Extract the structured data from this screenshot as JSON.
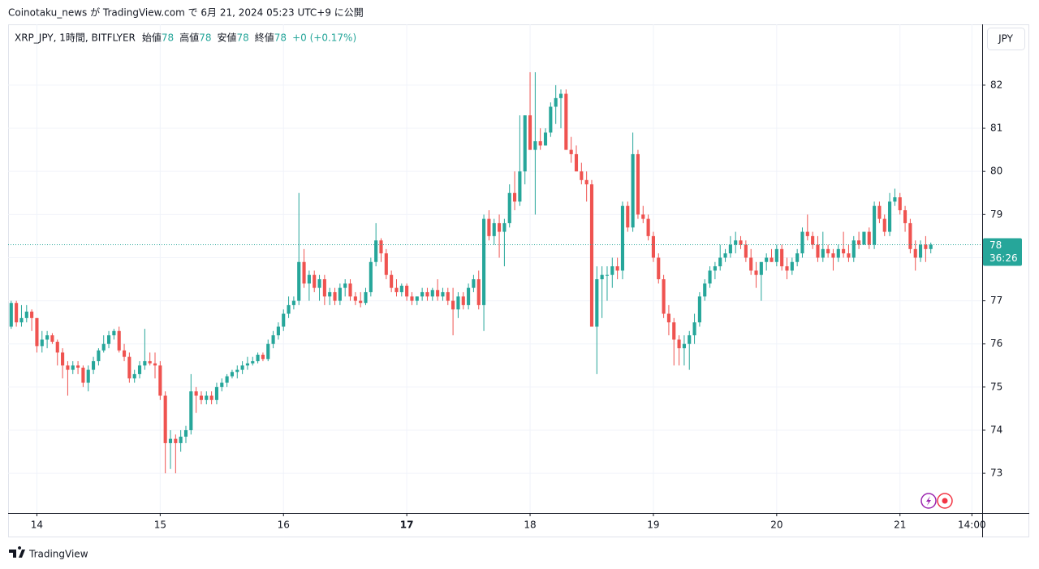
{
  "chart_data": {
    "type": "candlestick",
    "header": "Coinotaku_news が TradingView.com で 6月 21, 2024 05:23 UTC+9 に公開",
    "symbol": "XRP_JPY, 1時間, BITFLYER",
    "ohlc": [
      {
        "label": "始値",
        "value": "78"
      },
      {
        "label": "高値",
        "value": "78"
      },
      {
        "label": "安値",
        "value": "78"
      },
      {
        "label": "終値",
        "value": "78"
      }
    ],
    "change": "+0 (+0.17%)",
    "currency": "JPY",
    "last_price": {
      "label": "78",
      "countdown": "36:26"
    },
    "brand": "TradingView",
    "up_color": "#26a69a",
    "down_color": "#ef5350",
    "grid": true,
    "ylim": [
      72.08,
      83.41
    ],
    "yticks": [
      73,
      74,
      75,
      76,
      77,
      78,
      79,
      80,
      81,
      82
    ],
    "xlim": [
      -0.6,
      189
    ],
    "xticks": [
      {
        "value": 5,
        "label": "14"
      },
      {
        "value": 29,
        "label": "15"
      },
      {
        "value": 53,
        "label": "16"
      },
      {
        "value": 77,
        "label": "17",
        "bold": true
      },
      {
        "value": 101,
        "label": "18"
      },
      {
        "value": 125,
        "label": "19"
      },
      {
        "value": 149,
        "label": "20"
      },
      {
        "value": 173,
        "label": "21"
      },
      {
        "value": 187,
        "label": "14:00"
      }
    ],
    "candles": [
      [
        76.4,
        77.0,
        76.35,
        76.95
      ],
      [
        76.95,
        77.0,
        76.4,
        76.5
      ],
      [
        76.5,
        76.9,
        76.4,
        76.6
      ],
      [
        76.6,
        76.9,
        76.5,
        76.75
      ],
      [
        76.75,
        76.8,
        76.3,
        76.6
      ],
      [
        76.6,
        76.6,
        75.8,
        75.95
      ],
      [
        75.95,
        76.3,
        75.8,
        76.1
      ],
      [
        76.1,
        76.3,
        75.9,
        76.2
      ],
      [
        76.2,
        76.25,
        76.0,
        76.05
      ],
      [
        76.05,
        76.1,
        75.5,
        75.8
      ],
      [
        75.8,
        75.9,
        75.2,
        75.5
      ],
      [
        75.5,
        75.6,
        74.8,
        75.4
      ],
      [
        75.4,
        75.6,
        75.3,
        75.5
      ],
      [
        75.5,
        75.6,
        75.3,
        75.45
      ],
      [
        75.45,
        75.5,
        75.0,
        75.1
      ],
      [
        75.1,
        75.5,
        74.9,
        75.4
      ],
      [
        75.4,
        75.7,
        75.3,
        75.6
      ],
      [
        75.6,
        75.9,
        75.5,
        75.85
      ],
      [
        75.85,
        76.2,
        75.8,
        76.0
      ],
      [
        76.0,
        76.3,
        75.9,
        76.2
      ],
      [
        76.2,
        76.35,
        76.1,
        76.3
      ],
      [
        76.3,
        76.4,
        75.8,
        75.85
      ],
      [
        75.85,
        76.0,
        75.6,
        75.7
      ],
      [
        75.7,
        75.8,
        75.1,
        75.2
      ],
      [
        75.2,
        75.4,
        75.1,
        75.3
      ],
      [
        75.3,
        75.6,
        75.2,
        75.5
      ],
      [
        75.5,
        76.35,
        75.4,
        75.6
      ],
      [
        75.6,
        75.8,
        75.5,
        75.55
      ],
      [
        75.55,
        75.8,
        75.2,
        75.5
      ],
      [
        75.5,
        75.6,
        74.7,
        74.8
      ],
      [
        74.8,
        74.9,
        73.0,
        73.7
      ],
      [
        73.7,
        74.0,
        73.1,
        73.8
      ],
      [
        73.8,
        73.9,
        73.0,
        73.7
      ],
      [
        73.7,
        74.0,
        73.5,
        73.85
      ],
      [
        73.85,
        74.1,
        73.7,
        74.0
      ],
      [
        74.0,
        75.3,
        73.9,
        74.9
      ],
      [
        74.9,
        75.0,
        74.4,
        74.8
      ],
      [
        74.8,
        74.9,
        74.6,
        74.7
      ],
      [
        74.7,
        74.9,
        74.6,
        74.8
      ],
      [
        74.8,
        74.9,
        74.6,
        74.7
      ],
      [
        74.7,
        75.1,
        74.6,
        75.0
      ],
      [
        75.0,
        75.2,
        74.9,
        75.1
      ],
      [
        75.1,
        75.3,
        75.0,
        75.25
      ],
      [
        75.25,
        75.4,
        75.2,
        75.35
      ],
      [
        75.35,
        75.5,
        75.2,
        75.4
      ],
      [
        75.4,
        75.6,
        75.3,
        75.5
      ],
      [
        75.5,
        75.7,
        75.4,
        75.55
      ],
      [
        75.55,
        75.7,
        75.5,
        75.6
      ],
      [
        75.6,
        75.8,
        75.55,
        75.75
      ],
      [
        75.75,
        75.8,
        75.6,
        75.65
      ],
      [
        75.65,
        76.1,
        75.6,
        76.0
      ],
      [
        76.0,
        76.3,
        75.9,
        76.2
      ],
      [
        76.2,
        76.5,
        76.1,
        76.4
      ],
      [
        76.4,
        76.8,
        76.3,
        76.7
      ],
      [
        76.7,
        77.1,
        76.6,
        76.9
      ],
      [
        76.9,
        77.1,
        76.8,
        77.0
      ],
      [
        77.0,
        79.5,
        76.9,
        77.9
      ],
      [
        77.9,
        78.2,
        77.3,
        77.4
      ],
      [
        77.4,
        77.7,
        77.0,
        77.6
      ],
      [
        77.6,
        77.7,
        77.2,
        77.3
      ],
      [
        77.3,
        77.6,
        77.0,
        77.5
      ],
      [
        77.5,
        77.6,
        76.9,
        77.1
      ],
      [
        77.1,
        77.3,
        76.9,
        77.2
      ],
      [
        77.2,
        77.3,
        76.9,
        77.0
      ],
      [
        77.0,
        77.4,
        76.9,
        77.3
      ],
      [
        77.3,
        77.5,
        77.1,
        77.4
      ],
      [
        77.4,
        77.5,
        77.0,
        77.1
      ],
      [
        77.1,
        77.2,
        76.9,
        77.0
      ],
      [
        77.0,
        77.2,
        76.85,
        76.95
      ],
      [
        76.95,
        77.3,
        76.9,
        77.2
      ],
      [
        77.2,
        78.0,
        77.1,
        77.9
      ],
      [
        77.9,
        78.8,
        77.8,
        78.4
      ],
      [
        78.4,
        78.45,
        77.9,
        78.1
      ],
      [
        78.1,
        78.2,
        77.5,
        77.6
      ],
      [
        77.6,
        77.7,
        77.2,
        77.3
      ],
      [
        77.3,
        77.5,
        77.1,
        77.2
      ],
      [
        77.2,
        77.4,
        77.1,
        77.35
      ],
      [
        77.35,
        77.4,
        77.0,
        77.1
      ],
      [
        77.1,
        77.2,
        76.9,
        77.0
      ],
      [
        77.0,
        77.1,
        76.9,
        77.1
      ],
      [
        77.1,
        77.3,
        77.0,
        77.2
      ],
      [
        77.2,
        77.3,
        77.0,
        77.1
      ],
      [
        77.1,
        77.3,
        77.0,
        77.25
      ],
      [
        77.25,
        77.5,
        77.0,
        77.1
      ],
      [
        77.1,
        77.3,
        77.0,
        77.2
      ],
      [
        77.2,
        77.3,
        76.9,
        77.0
      ],
      [
        77.0,
        77.3,
        76.2,
        76.8
      ],
      [
        76.8,
        77.2,
        76.6,
        77.1
      ],
      [
        77.1,
        77.2,
        76.8,
        76.9
      ],
      [
        76.9,
        77.4,
        76.8,
        77.3
      ],
      [
        77.3,
        77.6,
        77.2,
        77.5
      ],
      [
        77.5,
        77.7,
        76.8,
        76.9
      ],
      [
        76.9,
        79.0,
        76.3,
        78.9
      ],
      [
        78.9,
        79.1,
        78.4,
        78.5
      ],
      [
        78.5,
        78.9,
        78.3,
        78.8
      ],
      [
        78.8,
        79.0,
        78.0,
        78.6
      ],
      [
        78.6,
        78.9,
        77.8,
        78.8
      ],
      [
        78.8,
        79.7,
        78.7,
        79.5
      ],
      [
        79.5,
        80.0,
        79.1,
        79.3
      ],
      [
        79.3,
        81.3,
        79.2,
        80.0
      ],
      [
        80.0,
        81.3,
        79.7,
        81.3
      ],
      [
        81.3,
        82.3,
        80.5,
        80.5
      ],
      [
        80.5,
        82.3,
        79.0,
        80.7
      ],
      [
        80.7,
        81.0,
        80.5,
        80.6
      ],
      [
        80.6,
        81.0,
        80.6,
        80.9
      ],
      [
        80.9,
        81.6,
        80.8,
        81.5
      ],
      [
        81.5,
        82.0,
        81.1,
        81.7
      ],
      [
        81.7,
        81.9,
        81.0,
        81.8
      ],
      [
        81.8,
        81.9,
        80.5,
        80.5
      ],
      [
        80.5,
        80.8,
        80.2,
        80.4
      ],
      [
        80.4,
        80.6,
        80.0,
        80.0
      ],
      [
        80.0,
        80.2,
        79.7,
        79.8
      ],
      [
        79.8,
        80.0,
        79.3,
        79.7
      ],
      [
        79.7,
        79.8,
        76.4,
        76.4
      ],
      [
        76.4,
        77.8,
        75.3,
        77.5
      ],
      [
        77.5,
        77.8,
        76.6,
        77.6
      ],
      [
        77.6,
        77.8,
        77.0,
        77.6
      ],
      [
        77.6,
        78.0,
        77.3,
        77.8
      ],
      [
        77.8,
        78.0,
        77.5,
        77.7
      ],
      [
        77.7,
        79.3,
        77.5,
        79.2
      ],
      [
        79.2,
        79.3,
        78.6,
        78.7
      ],
      [
        78.7,
        80.9,
        78.6,
        80.4
      ],
      [
        80.4,
        80.5,
        78.9,
        79.0
      ],
      [
        79.0,
        79.2,
        78.8,
        78.9
      ],
      [
        78.9,
        79.0,
        78.4,
        78.5
      ],
      [
        78.5,
        78.6,
        77.9,
        78.0
      ],
      [
        78.0,
        78.1,
        77.4,
        77.5
      ],
      [
        77.5,
        77.6,
        76.6,
        76.7
      ],
      [
        76.7,
        76.9,
        76.2,
        76.5
      ],
      [
        76.5,
        76.6,
        75.5,
        76.1
      ],
      [
        76.1,
        76.2,
        75.5,
        75.9
      ],
      [
        75.9,
        76.2,
        75.5,
        76.0
      ],
      [
        76.0,
        76.3,
        75.4,
        76.2
      ],
      [
        76.2,
        76.7,
        76.0,
        76.5
      ],
      [
        76.5,
        77.2,
        76.4,
        77.1
      ],
      [
        77.1,
        77.5,
        77.0,
        77.4
      ],
      [
        77.4,
        77.8,
        77.3,
        77.7
      ],
      [
        77.7,
        77.9,
        77.5,
        77.8
      ],
      [
        77.8,
        78.3,
        77.7,
        78.0
      ],
      [
        78.0,
        78.2,
        77.9,
        78.1
      ],
      [
        78.1,
        78.5,
        78.0,
        78.3
      ],
      [
        78.3,
        78.6,
        78.1,
        78.4
      ],
      [
        78.4,
        78.5,
        78.2,
        78.3
      ],
      [
        78.3,
        78.4,
        77.9,
        78.0
      ],
      [
        78.0,
        78.2,
        77.6,
        77.7
      ],
      [
        77.7,
        77.9,
        77.3,
        77.6
      ],
      [
        77.6,
        77.8,
        77.0,
        77.9
      ],
      [
        77.9,
        78.1,
        77.7,
        78.0
      ],
      [
        78.0,
        78.2,
        77.9,
        77.9
      ],
      [
        77.9,
        78.3,
        77.8,
        78.2
      ],
      [
        78.2,
        78.3,
        77.7,
        77.8
      ],
      [
        77.8,
        78.0,
        77.5,
        77.7
      ],
      [
        77.7,
        78.0,
        77.6,
        77.9
      ],
      [
        77.9,
        78.2,
        77.8,
        78.1
      ],
      [
        78.1,
        78.7,
        78.0,
        78.6
      ],
      [
        78.6,
        79.0,
        78.4,
        78.5
      ],
      [
        78.5,
        78.6,
        78.2,
        78.3
      ],
      [
        78.3,
        78.5,
        77.9,
        78.0
      ],
      [
        78.0,
        78.6,
        77.9,
        78.2
      ],
      [
        78.2,
        78.3,
        78.0,
        78.1
      ],
      [
        78.1,
        78.2,
        77.7,
        78.0
      ],
      [
        78.0,
        78.3,
        77.9,
        78.2
      ],
      [
        78.2,
        78.6,
        78.0,
        78.1
      ],
      [
        78.1,
        78.3,
        77.9,
        78.0
      ],
      [
        78.0,
        78.5,
        77.9,
        78.4
      ],
      [
        78.4,
        78.6,
        78.2,
        78.3
      ],
      [
        78.3,
        78.6,
        78.3,
        78.6
      ],
      [
        78.6,
        78.7,
        78.2,
        78.3
      ],
      [
        78.3,
        79.3,
        78.2,
        79.2
      ],
      [
        79.2,
        79.3,
        78.8,
        78.9
      ],
      [
        78.9,
        79.0,
        78.5,
        78.6
      ],
      [
        78.6,
        79.5,
        78.5,
        79.3
      ],
      [
        79.3,
        79.6,
        79.2,
        79.4
      ],
      [
        79.4,
        79.5,
        79.0,
        79.1
      ],
      [
        79.1,
        79.2,
        78.6,
        78.8
      ],
      [
        78.8,
        78.9,
        78.1,
        78.2
      ],
      [
        78.2,
        78.4,
        77.7,
        78.0
      ],
      [
        78.0,
        78.4,
        77.9,
        78.3
      ],
      [
        78.3,
        78.5,
        77.9,
        78.2
      ],
      [
        78.2,
        78.35,
        78.1,
        78.3
      ]
    ]
  }
}
